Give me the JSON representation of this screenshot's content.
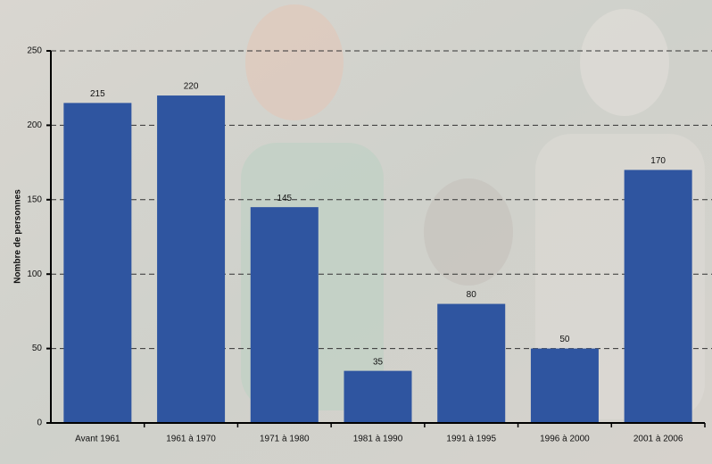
{
  "chart_data": {
    "type": "bar",
    "y_label": "Nombre de personnes",
    "categories": [
      "Avant 1961",
      "1961 à 1970",
      "1971 à 1980",
      "1981 à 1990",
      "1991 à 1995",
      "1996 à 2000",
      "2001 à 2006"
    ],
    "values": [
      215,
      220,
      145,
      35,
      80,
      50,
      170
    ],
    "color": "#2f55a0",
    "ylim": [
      0,
      250
    ],
    "yticks": [
      0,
      50,
      100,
      150,
      200,
      250
    ],
    "grid": true
  }
}
